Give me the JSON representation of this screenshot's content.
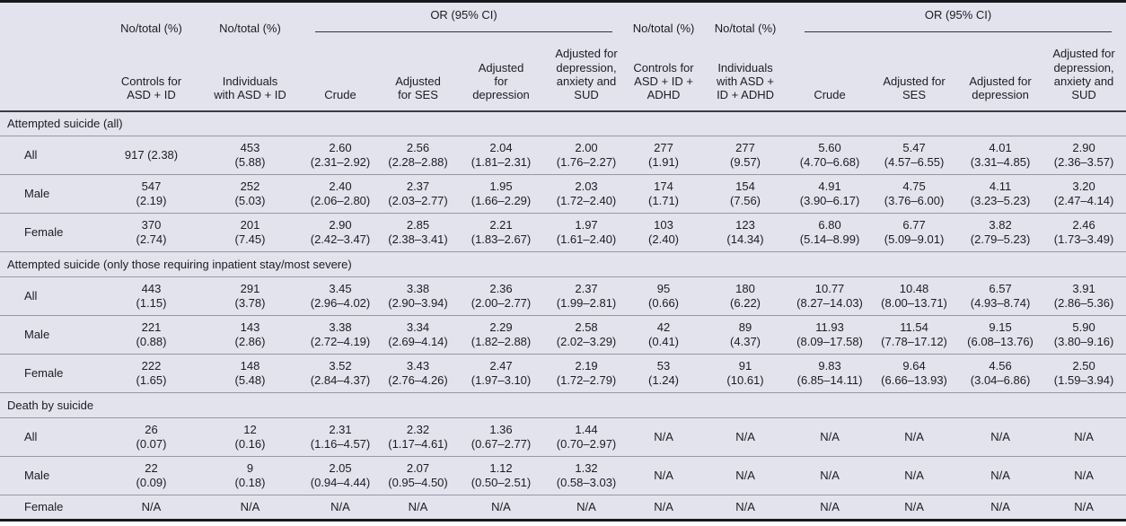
{
  "table": {
    "group_headers": {
      "no_total": "No/total (%)",
      "or_ci": "OR (95% CI)"
    },
    "columns": [
      "Controls for\nASD + ID",
      "Individuals\nwith ASD + ID",
      "Crude",
      "Adjusted\nfor SES",
      "Adjusted\nfor\ndepression",
      "Adjusted for\ndepression,\nanxiety and\nSUD",
      "Controls for\nASD + ID +\nADHD",
      "Individuals\nwith ASD +\nID + ADHD",
      "Crude",
      "Adjusted for\nSES",
      "Adjusted for\ndepression",
      "Adjusted for\ndepression,\nanxiety and\nSUD"
    ],
    "sections": [
      {
        "title": "Attempted suicide (all)",
        "rows": [
          {
            "label": "All",
            "cells": [
              "917 (2.38)",
              "453\n(5.88)",
              "2.60\n(2.31–2.92)",
              "2.56\n(2.28–2.88)",
              "2.04\n(1.81–2.31)",
              "2.00\n(1.76–2.27)",
              "277\n(1.91)",
              "277\n(9.57)",
              "5.60\n(4.70–6.68)",
              "5.47\n(4.57–6.55)",
              "4.01\n(3.31–4.85)",
              "2.90\n(2.36–3.57)"
            ]
          },
          {
            "label": "Male",
            "cells": [
              "547\n(2.19)",
              "252\n(5.03)",
              "2.40\n(2.06–2.80)",
              "2.37\n(2.03–2.77)",
              "1.95\n(1.66–2.29)",
              "2.03\n(1.72–2.40)",
              "174\n(1.71)",
              "154\n(7.56)",
              "4.91\n(3.90–6.17)",
              "4.75\n(3.76–6.00)",
              "4.11\n(3.23–5.23)",
              "3.20\n(2.47–4.14)"
            ]
          },
          {
            "label": "Female",
            "cells": [
              "370\n(2.74)",
              "201\n(7.45)",
              "2.90\n(2.42–3.47)",
              "2.85\n(2.38–3.41)",
              "2.21\n(1.83–2.67)",
              "1.97\n(1.61–2.40)",
              "103\n(2.40)",
              "123\n(14.34)",
              "6.80\n(5.14–8.99)",
              "6.77\n(5.09–9.01)",
              "3.82\n(2.79–5.23)",
              "2.46\n(1.73–3.49)"
            ]
          }
        ]
      },
      {
        "title": "Attempted suicide (only those requiring inpatient stay/most severe)",
        "rows": [
          {
            "label": "All",
            "cells": [
              "443\n(1.15)",
              "291\n(3.78)",
              "3.45\n(2.96–4.02)",
              "3.38\n(2.90–3.94)",
              "2.36\n(2.00–2.77)",
              "2.37\n(1.99–2.81)",
              "95\n(0.66)",
              "180\n(6.22)",
              "10.77\n(8.27–14.03)",
              "10.48\n(8.00–13.71)",
              "6.57\n(4.93–8.74)",
              "3.91\n(2.86–5.36)"
            ]
          },
          {
            "label": "Male",
            "cells": [
              "221\n(0.88)",
              "143\n(2.86)",
              "3.38\n(2.72–4.19)",
              "3.34\n(2.69–4.14)",
              "2.29\n(1.82–2.88)",
              "2.58\n(2.02–3.29)",
              "42\n(0.41)",
              "89\n(4.37)",
              "11.93\n(8.09–17.58)",
              "11.54\n(7.78–17.12)",
              "9.15\n(6.08–13.76)",
              "5.90\n(3.80–9.16)"
            ]
          },
          {
            "label": "Female",
            "cells": [
              "222\n(1.65)",
              "148\n(5.48)",
              "3.52\n(2.84–4.37)",
              "3.43\n(2.76–4.26)",
              "2.47\n(1.97–3.10)",
              "2.19\n(1.72–2.79)",
              "53\n(1.24)",
              "91\n(10.61)",
              "9.83\n(6.85–14.11)",
              "9.64\n(6.66–13.93)",
              "4.56\n(3.04–6.86)",
              "2.50\n(1.59–3.94)"
            ]
          }
        ]
      },
      {
        "title": "Death by suicide",
        "rows": [
          {
            "label": "All",
            "cells": [
              "26\n(0.07)",
              "12\n(0.16)",
              "2.31\n(1.16–4.57)",
              "2.32\n(1.17–4.61)",
              "1.36\n(0.67–2.77)",
              "1.44\n(0.70–2.97)",
              "N/A",
              "N/A",
              "N/A",
              "N/A",
              "N/A",
              "N/A"
            ]
          },
          {
            "label": "Male",
            "cells": [
              "22\n(0.09)",
              "9\n(0.18)",
              "2.05\n(0.94–4.44)",
              "2.07\n(0.95–4.50)",
              "1.12\n(0.50–2.51)",
              "1.32\n(0.58–3.03)",
              "N/A",
              "N/A",
              "N/A",
              "N/A",
              "N/A",
              "N/A"
            ]
          },
          {
            "label": "Female",
            "cells": [
              "N/A",
              "N/A",
              "N/A",
              "N/A",
              "N/A",
              "N/A",
              "N/A",
              "N/A",
              "N/A",
              "N/A",
              "N/A",
              "N/A"
            ]
          }
        ]
      }
    ]
  }
}
